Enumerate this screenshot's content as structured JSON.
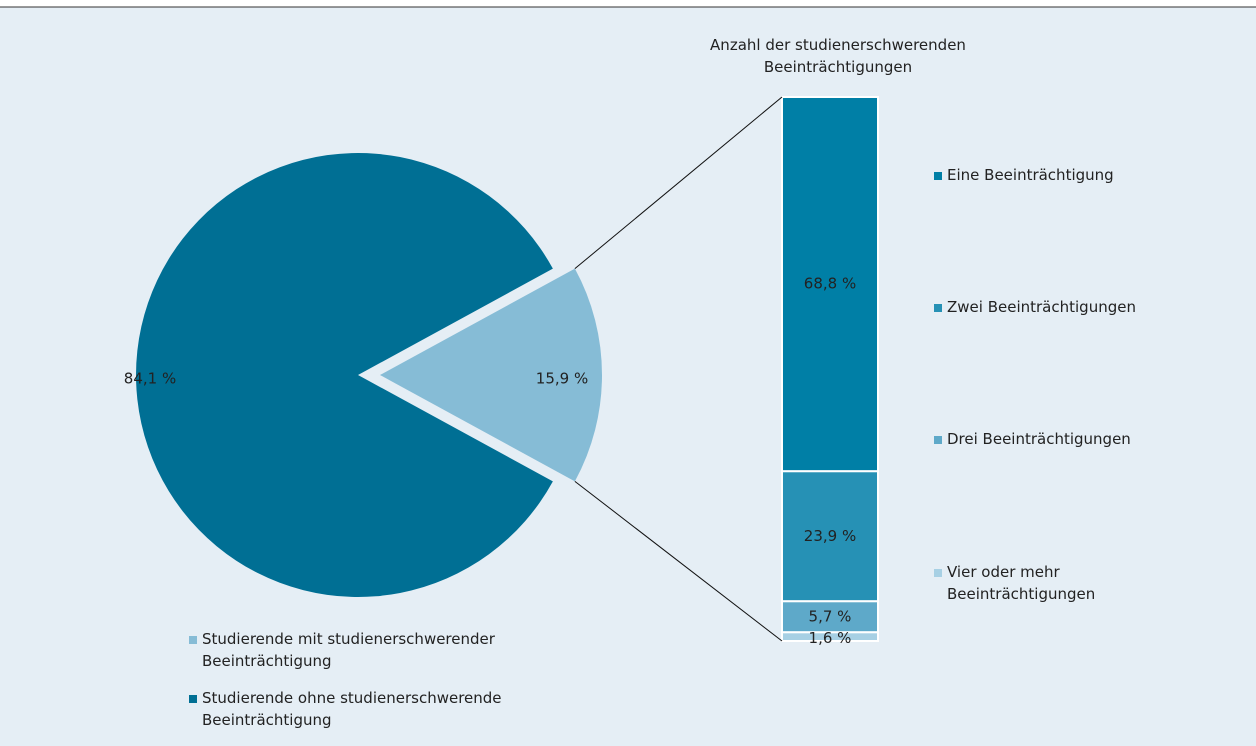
{
  "chart_data": [
    {
      "type": "pie",
      "categories": [
        "Studierende mit studienerschwerender Beeinträchtigung",
        "Studierende ohne studienerschwerende Beeinträchtigung"
      ],
      "values": [
        15.9,
        84.1
      ],
      "value_labels": [
        "15,9 %",
        "84,1 %"
      ],
      "colors": [
        "#86bcd6",
        "#006f94"
      ]
    },
    {
      "type": "bar",
      "title": "Anzahl der studienerschwerenden Beeinträchtigungen",
      "stacked": true,
      "categories": [
        "Eine Beeinträchtigung",
        "Zwei Beeinträchtigungen",
        "Drei Beeinträchtigungen",
        "Vier oder mehr Beeinträchtigungen"
      ],
      "values": [
        68.8,
        23.9,
        5.7,
        1.6
      ],
      "value_labels": [
        "68,8 %",
        "23,9 %",
        "5,7 %",
        "1,6 %"
      ],
      "colors": [
        "#007fa6",
        "#2691b5",
        "#5ea9c9",
        "#a7d0e4"
      ]
    }
  ]
}
